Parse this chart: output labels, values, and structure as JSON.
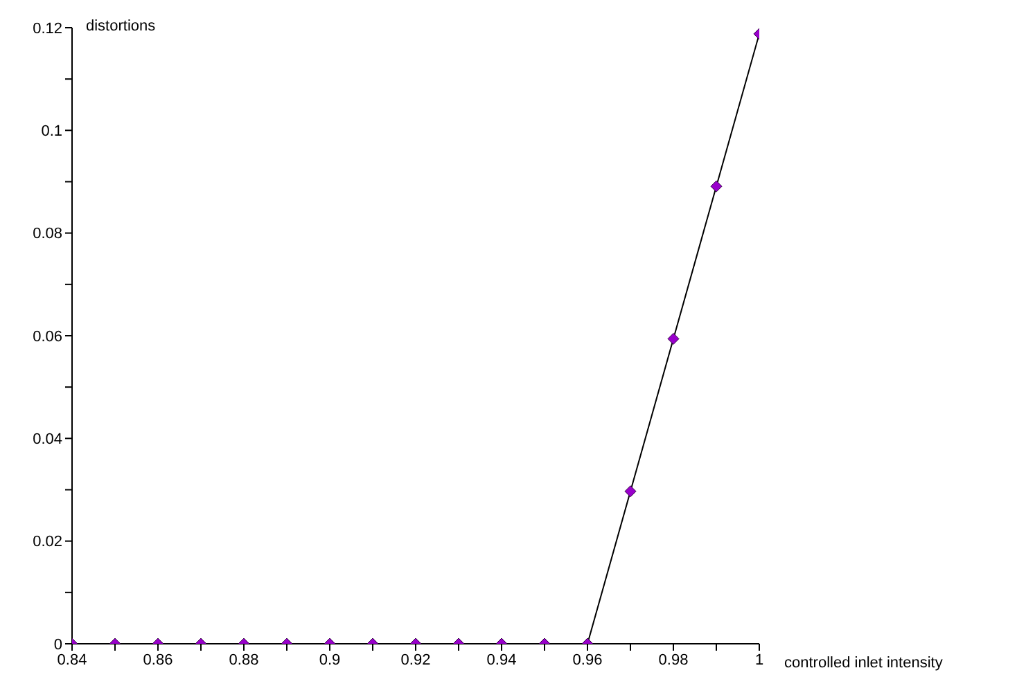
{
  "chart_data": {
    "type": "line",
    "xlabel": "controlled inlet intensity",
    "ylabel": "distortions",
    "x": [
      0.84,
      0.85,
      0.86,
      0.87,
      0.88,
      0.89,
      0.9,
      0.91,
      0.92,
      0.93,
      0.94,
      0.95,
      0.96,
      0.97,
      0.98,
      0.99,
      1
    ],
    "series": [
      {
        "color": "#9900cc",
        "values": [
          0,
          0,
          0,
          0,
          0,
          0,
          0,
          0,
          0,
          0,
          0,
          0,
          0,
          0.0297,
          0.0594,
          0.0891,
          0.1188
        ]
      }
    ],
    "xlim": [
      0.84,
      1
    ],
    "xticks": [
      0.84,
      {
        "value": 0.85,
        "label": null
      },
      0.86,
      {
        "value": 0.87,
        "label": null
      },
      0.88,
      {
        "value": 0.89,
        "label": null
      },
      0.9,
      {
        "value": 0.91,
        "label": null
      },
      0.92,
      {
        "value": 0.93,
        "label": null
      },
      0.94,
      {
        "value": 0.95,
        "label": null
      },
      0.96,
      {
        "value": 0.97,
        "label": null
      },
      0.98,
      {
        "value": 0.99,
        "label": null
      },
      1
    ],
    "ylim": [
      0,
      0.12
    ],
    "yticks": [
      0,
      {
        "value": 0.01,
        "label": null
      },
      0.02,
      {
        "value": 0.03,
        "label": null
      },
      0.04,
      {
        "value": 0.05,
        "label": null
      },
      0.06,
      {
        "value": 0.07,
        "label": null
      },
      0.08,
      {
        "value": 0.09,
        "label": null
      },
      0.1,
      {
        "value": 0.11,
        "label": null
      },
      0.12
    ],
    "grid": false,
    "legend": false,
    "marker": "diamond",
    "line_style": "solid"
  }
}
